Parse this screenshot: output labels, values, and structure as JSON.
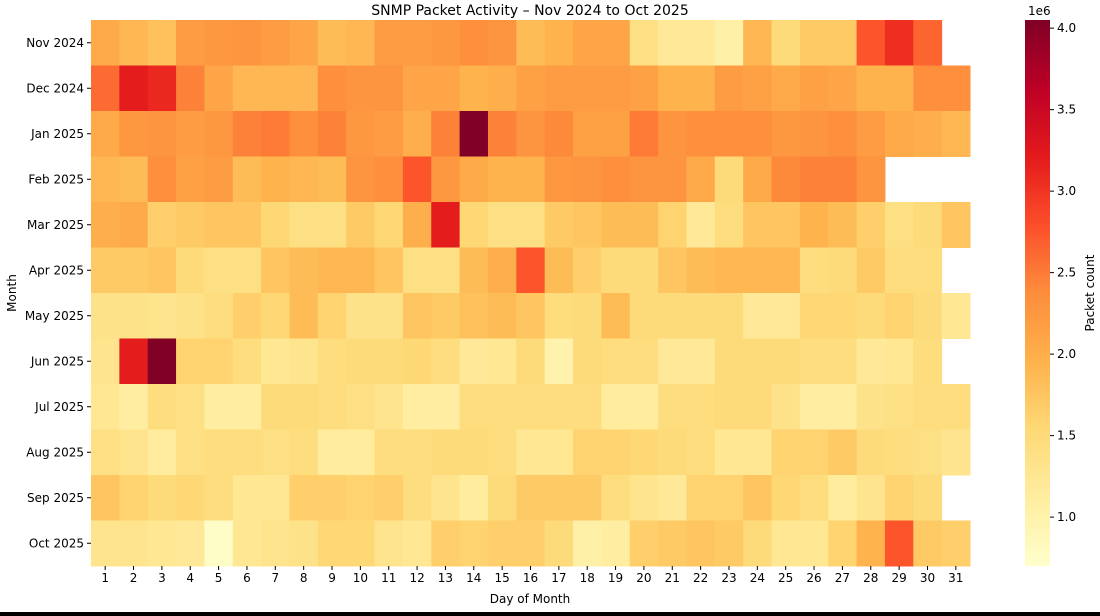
{
  "chart_data": {
    "type": "heatmap",
    "title": "SNMP Packet Activity – Nov 2024 to Oct 2025",
    "xlabel": "Day of Month",
    "ylabel": "Month",
    "colorbar_label": "Packet count",
    "colorbar_offset": "1e6",
    "colormap": [
      "#ffffcc",
      "#ffeda0",
      "#fed976",
      "#feb24c",
      "#fd8d3c",
      "#fc4e2a",
      "#e31a1c",
      "#bd0026",
      "#800026"
    ],
    "value_range": [
      0.7,
      4.05
    ],
    "colorbar_ticks": [
      1.0,
      1.5,
      2.0,
      2.5,
      3.0,
      3.5,
      4.0
    ],
    "colorbar_tick_labels": [
      "1.0",
      "1.5",
      "2.0",
      "2.5",
      "3.0",
      "3.5",
      "4.0"
    ],
    "x_categories": [
      "1",
      "2",
      "3",
      "4",
      "5",
      "6",
      "7",
      "8",
      "9",
      "10",
      "11",
      "12",
      "13",
      "14",
      "15",
      "16",
      "17",
      "18",
      "19",
      "20",
      "21",
      "22",
      "23",
      "24",
      "25",
      "26",
      "27",
      "28",
      "29",
      "30",
      "31"
    ],
    "y_categories": [
      "Nov 2024",
      "Dec 2024",
      "Jan 2025",
      "Feb 2025",
      "Mar 2025",
      "Apr 2025",
      "May 2025",
      "Jun 2025",
      "Jul 2025",
      "Aug 2025",
      "Sep 2025",
      "Oct 2025"
    ],
    "values": [
      [
        2.05,
        1.9,
        1.8,
        2.2,
        2.25,
        2.3,
        2.2,
        2.1,
        1.85,
        1.9,
        2.2,
        2.2,
        2.25,
        2.35,
        2.3,
        1.85,
        1.95,
        2.1,
        2.1,
        1.4,
        1.2,
        1.2,
        1.05,
        1.9,
        1.5,
        1.7,
        1.7,
        2.75,
        3.05,
        2.65,
        null
      ],
      [
        2.6,
        3.2,
        3.1,
        2.45,
        2.1,
        1.9,
        1.9,
        1.9,
        2.35,
        2.3,
        2.3,
        2.1,
        2.1,
        1.95,
        2.0,
        2.15,
        2.2,
        2.2,
        2.2,
        2.15,
        1.95,
        1.95,
        2.2,
        2.15,
        2.05,
        2.15,
        2.1,
        1.95,
        1.95,
        2.35,
        2.35
      ],
      [
        2.05,
        2.25,
        2.3,
        2.2,
        2.25,
        2.45,
        2.5,
        2.35,
        2.45,
        2.25,
        2.2,
        2.0,
        2.45,
        4.05,
        2.45,
        2.3,
        2.4,
        2.15,
        2.15,
        2.5,
        2.3,
        2.35,
        2.35,
        2.35,
        2.25,
        2.3,
        2.35,
        2.2,
        2.05,
        2.0,
        1.9
      ],
      [
        1.9,
        1.85,
        2.35,
        2.15,
        2.2,
        1.85,
        1.95,
        1.9,
        1.85,
        2.3,
        2.35,
        2.75,
        2.25,
        2.05,
        1.95,
        1.95,
        2.25,
        2.3,
        2.35,
        2.3,
        2.3,
        2.05,
        1.5,
        2.05,
        2.4,
        2.45,
        2.45,
        2.3,
        null,
        null,
        null
      ],
      [
        2.0,
        2.05,
        1.65,
        1.7,
        1.75,
        1.75,
        1.55,
        1.4,
        1.4,
        1.7,
        1.55,
        2.0,
        3.2,
        1.55,
        1.4,
        1.4,
        1.7,
        1.75,
        1.85,
        1.85,
        1.6,
        1.2,
        1.45,
        1.75,
        1.75,
        1.95,
        1.85,
        1.65,
        1.4,
        1.5,
        1.75
      ],
      [
        1.7,
        1.7,
        1.75,
        1.5,
        1.4,
        1.4,
        1.75,
        1.85,
        1.9,
        1.9,
        1.75,
        1.4,
        1.4,
        1.85,
        2.0,
        2.75,
        1.85,
        1.65,
        1.5,
        1.5,
        1.75,
        1.85,
        1.9,
        1.9,
        1.9,
        1.45,
        1.5,
        1.7,
        1.45,
        1.45,
        null
      ],
      [
        1.35,
        1.35,
        1.3,
        1.35,
        1.45,
        1.65,
        1.55,
        1.85,
        1.6,
        1.35,
        1.35,
        1.75,
        1.7,
        1.8,
        1.85,
        1.75,
        1.45,
        1.5,
        1.85,
        1.5,
        1.5,
        1.5,
        1.5,
        1.2,
        1.2,
        1.55,
        1.55,
        1.5,
        1.6,
        1.5,
        1.25
      ],
      [
        1.3,
        3.2,
        4.05,
        1.6,
        1.6,
        1.45,
        1.25,
        1.3,
        1.45,
        1.5,
        1.5,
        1.55,
        1.45,
        1.2,
        1.25,
        1.5,
        1.0,
        1.5,
        1.45,
        1.45,
        1.2,
        1.2,
        1.5,
        1.5,
        1.5,
        1.45,
        1.45,
        1.2,
        1.25,
        1.45,
        null
      ],
      [
        1.25,
        1.1,
        1.45,
        1.4,
        1.1,
        1.1,
        1.5,
        1.5,
        1.45,
        1.4,
        1.3,
        1.1,
        1.1,
        1.45,
        1.45,
        1.45,
        1.45,
        1.45,
        1.15,
        1.15,
        1.45,
        1.45,
        1.5,
        1.5,
        1.35,
        1.1,
        1.1,
        1.35,
        1.4,
        1.45,
        1.45
      ],
      [
        1.4,
        1.3,
        1.15,
        1.4,
        1.45,
        1.45,
        1.4,
        1.45,
        1.15,
        1.15,
        1.45,
        1.45,
        1.5,
        1.5,
        1.45,
        1.25,
        1.25,
        1.6,
        1.6,
        1.55,
        1.5,
        1.45,
        1.25,
        1.25,
        1.6,
        1.6,
        1.7,
        1.5,
        1.45,
        1.4,
        1.3
      ],
      [
        1.75,
        1.6,
        1.5,
        1.55,
        1.45,
        1.25,
        1.25,
        1.65,
        1.65,
        1.6,
        1.65,
        1.45,
        1.3,
        1.15,
        1.5,
        1.7,
        1.7,
        1.7,
        1.45,
        1.3,
        1.2,
        1.6,
        1.6,
        1.75,
        1.55,
        1.45,
        1.15,
        1.3,
        1.6,
        1.5,
        null
      ],
      [
        1.3,
        1.3,
        1.25,
        1.2,
        0.75,
        1.25,
        1.3,
        1.35,
        1.55,
        1.55,
        1.3,
        1.25,
        1.65,
        1.6,
        1.65,
        1.65,
        1.5,
        1.05,
        1.1,
        1.65,
        1.7,
        1.75,
        1.7,
        1.5,
        1.25,
        1.25,
        1.6,
        1.95,
        2.75,
        1.7,
        1.65
      ]
    ]
  }
}
